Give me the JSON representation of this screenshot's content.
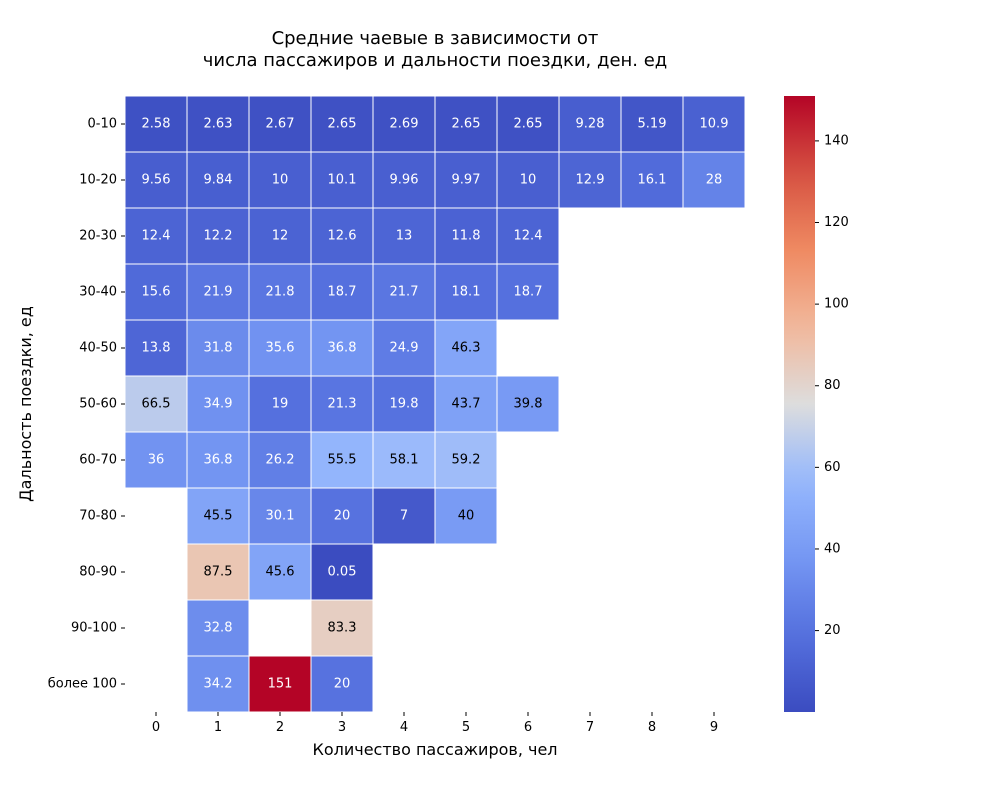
{
  "chart_data": {
    "type": "heatmap",
    "title_lines": [
      "Средние чаевые в зависимости от",
      "числа пассажиров и дальности поездки, ден. ед"
    ],
    "xlabel": "Количество пассажиров, чел",
    "ylabel": "Дальность поездки, ед",
    "x_categories": [
      "0",
      "1",
      "2",
      "3",
      "4",
      "5",
      "6",
      "7",
      "8",
      "9"
    ],
    "y_categories": [
      "0-10",
      "10-20",
      "20-30",
      "30-40",
      "40-50",
      "50-60",
      "60-70",
      "70-80",
      "80-90",
      "90-100",
      "более 100"
    ],
    "values": [
      [
        2.58,
        2.63,
        2.67,
        2.65,
        2.69,
        2.65,
        2.65,
        9.28,
        5.19,
        10.9
      ],
      [
        9.56,
        9.84,
        10,
        10.1,
        9.96,
        9.97,
        10,
        12.9,
        16.1,
        28
      ],
      [
        12.4,
        12.2,
        12,
        12.6,
        13,
        11.8,
        12.4,
        null,
        null,
        null
      ],
      [
        15.6,
        21.9,
        21.8,
        18.7,
        21.7,
        18.1,
        18.7,
        null,
        null,
        null
      ],
      [
        13.8,
        31.8,
        35.6,
        36.8,
        24.9,
        46.3,
        null,
        null,
        null,
        null
      ],
      [
        66.5,
        34.9,
        19,
        21.3,
        19.8,
        43.7,
        39.8,
        null,
        null,
        null
      ],
      [
        36,
        36.8,
        26.2,
        55.5,
        58.1,
        59.2,
        null,
        null,
        null,
        null
      ],
      [
        null,
        45.5,
        30.1,
        20,
        7,
        40,
        null,
        null,
        null,
        null
      ],
      [
        null,
        87.5,
        45.6,
        0.05,
        null,
        null,
        null,
        null,
        null,
        null
      ],
      [
        null,
        32.8,
        null,
        83.3,
        null,
        null,
        null,
        null,
        null,
        null
      ],
      [
        null,
        34.2,
        151,
        20,
        null,
        null,
        null,
        null,
        null,
        null
      ]
    ],
    "value_labels": [
      [
        "2.58",
        "2.63",
        "2.67",
        "2.65",
        "2.69",
        "2.65",
        "2.65",
        "9.28",
        "5.19",
        "10.9"
      ],
      [
        "9.56",
        "9.84",
        "10",
        "10.1",
        "9.96",
        "9.97",
        "10",
        "12.9",
        "16.1",
        "28"
      ],
      [
        "12.4",
        "12.2",
        "12",
        "12.6",
        "13",
        "11.8",
        "12.4",
        "",
        "",
        ""
      ],
      [
        "15.6",
        "21.9",
        "21.8",
        "18.7",
        "21.7",
        "18.1",
        "18.7",
        "",
        "",
        ""
      ],
      [
        "13.8",
        "31.8",
        "35.6",
        "36.8",
        "24.9",
        "46.3",
        "",
        "",
        "",
        ""
      ],
      [
        "66.5",
        "34.9",
        "19",
        "21.3",
        "19.8",
        "43.7",
        "39.8",
        "",
        "",
        ""
      ],
      [
        "36",
        "36.8",
        "26.2",
        "55.5",
        "58.1",
        "59.2",
        "",
        "",
        "",
        ""
      ],
      [
        "",
        "45.5",
        "30.1",
        "20",
        "7",
        "40",
        "",
        "",
        "",
        ""
      ],
      [
        "",
        "87.5",
        "45.6",
        "0.05",
        "",
        "",
        "",
        "",
        "",
        ""
      ],
      [
        "",
        "32.8",
        "",
        "83.3",
        "",
        "",
        "",
        "",
        "",
        ""
      ],
      [
        "",
        "34.2",
        "151",
        "20",
        "",
        "",
        "",
        "",
        "",
        ""
      ]
    ],
    "colormap": "coolwarm",
    "colorbar_range": [
      0.05,
      151
    ],
    "colorbar_ticks": [
      20,
      40,
      60,
      80,
      100,
      120,
      140
    ],
    "grid": false,
    "legend": "colorbar-right"
  },
  "colors": {
    "cell_border": "#ffffff",
    "text_dark": "#000000",
    "text_light": "#ffffff"
  }
}
